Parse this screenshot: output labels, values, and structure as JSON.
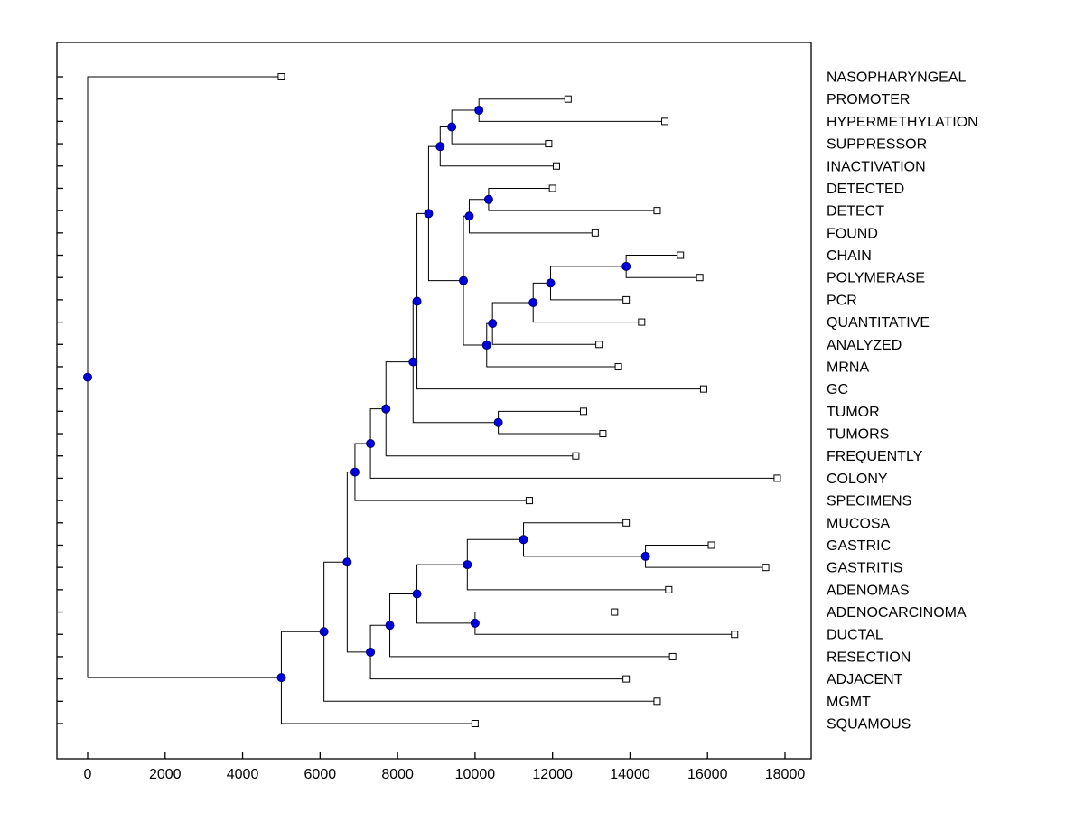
{
  "chart_data": {
    "type": "dendrogram",
    "orientation": "horizontal",
    "leaf_labels_side": "right",
    "root_side": "left",
    "grid": false,
    "markers": {
      "leaf": "open-square",
      "node": "filled-circle"
    },
    "x_axis": {
      "min": 0,
      "max": 18000,
      "ticks": [
        0,
        2000,
        4000,
        6000,
        8000,
        10000,
        12000,
        14000,
        16000,
        18000
      ]
    },
    "leaves": [
      {
        "label": "NASOPHARYNGEAL",
        "value": 5000
      },
      {
        "label": "PROMOTER",
        "value": 12400
      },
      {
        "label": "HYPERMETHYLATION",
        "value": 14900
      },
      {
        "label": "SUPPRESSOR",
        "value": 11900
      },
      {
        "label": "INACTIVATION",
        "value": 12100
      },
      {
        "label": "DETECTED",
        "value": 12000
      },
      {
        "label": "DETECT",
        "value": 14700
      },
      {
        "label": "FOUND",
        "value": 13100
      },
      {
        "label": "CHAIN",
        "value": 15300
      },
      {
        "label": "POLYMERASE",
        "value": 15800
      },
      {
        "label": "PCR",
        "value": 13900
      },
      {
        "label": "QUANTITATIVE",
        "value": 14300
      },
      {
        "label": "ANALYZED",
        "value": 13200
      },
      {
        "label": "MRNA",
        "value": 13700
      },
      {
        "label": "GC",
        "value": 15900
      },
      {
        "label": "TUMOR",
        "value": 12800
      },
      {
        "label": "TUMORS",
        "value": 13300
      },
      {
        "label": "FREQUENTLY",
        "value": 12600
      },
      {
        "label": "COLONY",
        "value": 17800
      },
      {
        "label": "SPECIMENS",
        "value": 11400
      },
      {
        "label": "MUCOSA",
        "value": 13900
      },
      {
        "label": "GASTRIC",
        "value": 16100
      },
      {
        "label": "GASTRITIS",
        "value": 17500
      },
      {
        "label": "ADENOMAS",
        "value": 15000
      },
      {
        "label": "ADENOCARCINOMA",
        "value": 13600
      },
      {
        "label": "DUCTAL",
        "value": 16700
      },
      {
        "label": "RESECTION",
        "value": 15100
      },
      {
        "label": "ADJACENT",
        "value": 13900
      },
      {
        "label": "MGMT",
        "value": 14700
      },
      {
        "label": "SQUAMOUS",
        "value": 10000
      }
    ],
    "merges": [
      {
        "id": "m1",
        "children": [
          "PROMOTER",
          "HYPERMETHYLATION"
        ],
        "value": 10100
      },
      {
        "id": "m2",
        "children": [
          "m1",
          "SUPPRESSOR"
        ],
        "value": 9400
      },
      {
        "id": "m3",
        "children": [
          "m2",
          "INACTIVATION"
        ],
        "value": 9100
      },
      {
        "id": "m4",
        "children": [
          "DETECTED",
          "DETECT"
        ],
        "value": 10350
      },
      {
        "id": "m5",
        "children": [
          "m4",
          "FOUND"
        ],
        "value": 9850
      },
      {
        "id": "m6",
        "children": [
          "CHAIN",
          "POLYMERASE"
        ],
        "value": 13900
      },
      {
        "id": "m7",
        "children": [
          "m6",
          "PCR"
        ],
        "value": 11950
      },
      {
        "id": "m8",
        "children": [
          "m7",
          "QUANTITATIVE"
        ],
        "value": 11500
      },
      {
        "id": "m9",
        "children": [
          "m8",
          "ANALYZED"
        ],
        "value": 10450
      },
      {
        "id": "m10",
        "children": [
          "m9",
          "MRNA"
        ],
        "value": 10300
      },
      {
        "id": "m11",
        "children": [
          "m5",
          "m10"
        ],
        "value": 9700
      },
      {
        "id": "m12",
        "children": [
          "m3",
          "m11"
        ],
        "value": 8800
      },
      {
        "id": "m13",
        "children": [
          "m12",
          "GC"
        ],
        "value": 8500
      },
      {
        "id": "m14",
        "children": [
          "TUMOR",
          "TUMORS"
        ],
        "value": 10600
      },
      {
        "id": "m15",
        "children": [
          "m13",
          "m14"
        ],
        "value": 8400
      },
      {
        "id": "m16",
        "children": [
          "m15",
          "FREQUENTLY"
        ],
        "value": 7700
      },
      {
        "id": "m17",
        "children": [
          "m16",
          "COLONY"
        ],
        "value": 7300
      },
      {
        "id": "m18",
        "children": [
          "m17",
          "SPECIMENS"
        ],
        "value": 6900
      },
      {
        "id": "m19",
        "children": [
          "GASTRIC",
          "GASTRITIS"
        ],
        "value": 14400
      },
      {
        "id": "m20",
        "children": [
          "MUCOSA",
          "m19"
        ],
        "value": 11250
      },
      {
        "id": "m21",
        "children": [
          "m20",
          "ADENOMAS"
        ],
        "value": 9800
      },
      {
        "id": "m22",
        "children": [
          "ADENOCARCINOMA",
          "DUCTAL"
        ],
        "value": 10000
      },
      {
        "id": "m23",
        "children": [
          "m21",
          "m22"
        ],
        "value": 8500
      },
      {
        "id": "m24",
        "children": [
          "m23",
          "RESECTION"
        ],
        "value": 7800
      },
      {
        "id": "m25",
        "children": [
          "m24",
          "ADJACENT"
        ],
        "value": 7300
      },
      {
        "id": "m26",
        "children": [
          "m18",
          "m25"
        ],
        "value": 6700
      },
      {
        "id": "m27",
        "children": [
          "m26",
          "MGMT"
        ],
        "value": 6100
      },
      {
        "id": "m28",
        "children": [
          "m27",
          "SQUAMOUS"
        ],
        "value": 5000
      },
      {
        "id": "root",
        "children": [
          "NASOPHARYNGEAL",
          "m28"
        ],
        "value": 0
      }
    ],
    "colors": {
      "background": "#ffffff",
      "axis": "#000000",
      "text": "#000000",
      "line": "#000000",
      "leaf_marker_fill": "#ffffff",
      "leaf_marker_stroke": "#000000",
      "node_marker_fill": "#0000e0",
      "node_marker_stroke": "#000070"
    }
  }
}
